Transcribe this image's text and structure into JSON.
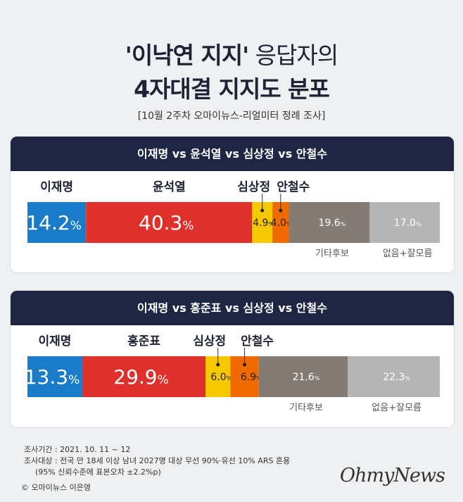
{
  "title_quote": "'이낙연 지지'",
  "title_rest": " 응답자의",
  "title_line2": "4자대결 지지도 분포",
  "subtitle": "[10월 2주차 오마이뉴스-리얼미터 정례 조사]",
  "colors": {
    "이재명": "#1a7bc8",
    "윤석열": "#e0302b",
    "홍준표": "#e0302b",
    "심상정": "#f5c800",
    "안철수": "#f06a00",
    "기타후보": "#847c74",
    "없음+잘모름": "#b5b5b5"
  },
  "chart_data": [
    {
      "type": "bar",
      "orientation": "horizontal-stacked",
      "title": "이재명 vs 윤석열 vs 심상정 vs 안철수",
      "unit": "%",
      "categories": [
        "이재명",
        "윤석열",
        "심상정",
        "안철수",
        "기타후보",
        "없음+잘모름"
      ],
      "values": [
        14.2,
        40.3,
        4.9,
        4.0,
        19.6,
        17.0
      ]
    },
    {
      "type": "bar",
      "orientation": "horizontal-stacked",
      "title": "이재명 vs 홍준표 vs 심상정 vs 안철수",
      "unit": "%",
      "categories": [
        "이재명",
        "홍준표",
        "심상정",
        "안철수",
        "기타후보",
        "없음+잘모름"
      ],
      "values": [
        13.3,
        29.9,
        6.0,
        6.9,
        21.6,
        22.3
      ]
    }
  ],
  "footer": {
    "period": "조사기간 : 2021. 10. 11 ~ 12",
    "target": "조사대상 : 전국 만 18세 이상 남녀 2027명 대상 무선 90%·유선 10% ARS 혼용",
    "error": "(95% 신뢰수준에 표본오차 ±2.2%p)",
    "copyright": "© 오마이뉴스 이은영"
  },
  "logo": "OhmyNews"
}
